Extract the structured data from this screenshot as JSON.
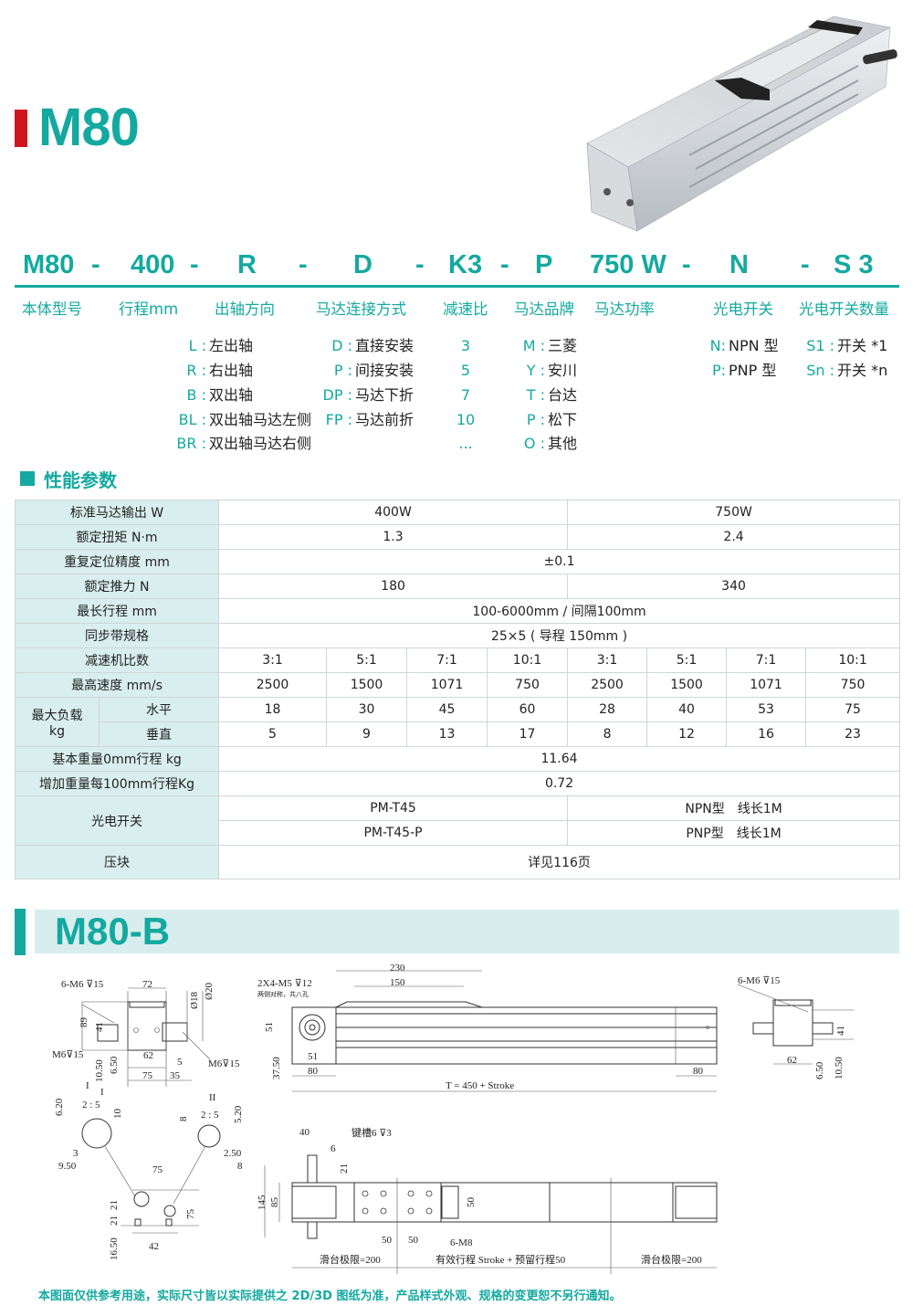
{
  "header": {
    "title": "M80",
    "accent_color": "#14a9a0",
    "title_bar_color": "#d0161d"
  },
  "product_image": {
    "icon": "linear-actuator-photo"
  },
  "model_code": {
    "parts": [
      "M80",
      "-",
      "400",
      "-",
      "R",
      "-",
      "D",
      "-",
      "K3",
      "-",
      "P",
      "750 W",
      "-",
      "N",
      "-",
      "S 3"
    ],
    "labels": [
      "本体型号",
      "行程mm",
      "出轴方向",
      "马达连接方式",
      "减速比",
      "马达品牌",
      "马达功率",
      "光电开关",
      "光电开关数量"
    ]
  },
  "options": {
    "shaft_direction": [
      {
        "code": "L :",
        "text": "左出轴"
      },
      {
        "code": "R :",
        "text": "右出轴"
      },
      {
        "code": "B :",
        "text": "双出轴"
      },
      {
        "code": "BL :",
        "text": "双出轴马达左侧"
      },
      {
        "code": "BR :",
        "text": "双出轴马达右侧"
      }
    ],
    "motor_connection": [
      {
        "code": "D :",
        "text": "直接安装"
      },
      {
        "code": "P :",
        "text": "间接安装"
      },
      {
        "code": "DP :",
        "text": "马达下折"
      },
      {
        "code": "FP :",
        "text": "马达前折"
      }
    ],
    "reduction_ratio": [
      "3",
      "5",
      "7",
      "10",
      "..."
    ],
    "motor_brand": [
      {
        "code": "M :",
        "text": "三菱"
      },
      {
        "code": "Y :",
        "text": "安川"
      },
      {
        "code": "T :",
        "text": "台达"
      },
      {
        "code": "P :",
        "text": "松下"
      },
      {
        "code": "O :",
        "text": "其他"
      }
    ],
    "sensor": [
      {
        "code": "N:",
        "text": "NPN 型"
      },
      {
        "code": "P:",
        "text": "PNP 型"
      }
    ],
    "sensor_qty": [
      {
        "code": "S1 :",
        "text": "开关 *1"
      },
      {
        "code": "Sn :",
        "text": "开关 *n"
      }
    ]
  },
  "performance": {
    "section_title": "性能参数",
    "rows": [
      {
        "label": "标准马达输出 W",
        "values": [
          "400W",
          "750W"
        ]
      },
      {
        "label": "额定扭矩 N·m",
        "values": [
          "1.3",
          "2.4"
        ]
      },
      {
        "label": "重复定位精度 mm",
        "values": [
          "±0.1"
        ]
      },
      {
        "label": "额定推力 N",
        "values": [
          "180",
          "340"
        ]
      },
      {
        "label": "最长行程 mm",
        "values": [
          "100-6000mm / 间隔100mm"
        ]
      },
      {
        "label": "同步带规格",
        "values": [
          "25×5 ( 导程 150mm )"
        ]
      },
      {
        "label": "减速机比数",
        "values": [
          "3:1",
          "5:1",
          "7:1",
          "10:1",
          "3:1",
          "5:1",
          "7:1",
          "10:1"
        ]
      },
      {
        "label": "最高速度 mm/s",
        "values": [
          "2500",
          "1500",
          "1071",
          "750",
          "2500",
          "1500",
          "1071",
          "750"
        ]
      },
      {
        "label": "最大负载\nkg",
        "sub": [
          {
            "label": "水平",
            "values": [
              "18",
              "30",
              "45",
              "60",
              "28",
              "40",
              "53",
              "75"
            ]
          },
          {
            "label": "垂直",
            "values": [
              "5",
              "9",
              "13",
              "17",
              "8",
              "12",
              "16",
              "23"
            ]
          }
        ]
      },
      {
        "label": "基本重量0mm行程 kg",
        "values": [
          "11.64"
        ]
      },
      {
        "label": "增加重量每100mm行程Kg",
        "values": [
          "0.72"
        ]
      },
      {
        "label": "光电开关",
        "sub": [
          {
            "values": [
              "PM-T45",
              "NPN型　线长1M"
            ]
          },
          {
            "values": [
              "PM-T45-P",
              "PNP型　线长1M"
            ]
          }
        ]
      },
      {
        "label": "压块",
        "values": [
          "详见116页"
        ]
      }
    ]
  },
  "variant": {
    "title": "M80-B"
  },
  "drawings": {
    "end_left": {
      "tap_top": "6-M6 ⊽15",
      "w72": "72",
      "h89": "89",
      "h41": "41",
      "d18": "Ø18",
      "d20": "Ø20",
      "tap_left": "M6⊽15",
      "w62": "62",
      "w5": "5",
      "tap_right": "M6⊽15",
      "h10_50": "10.50",
      "h6_50": "6.50",
      "w75": "75",
      "w35": "35",
      "detail_mark": "I"
    },
    "side": {
      "tap": "2X4-M5  ⊽12",
      "tap_note": "两侧对称，共八孔",
      "w230": "230",
      "w150": "150",
      "h51": "51",
      "h37_50": "37.50",
      "w51": "51",
      "w80": "80",
      "total": "T = 450 + Stroke",
      "w80_right": "80"
    },
    "end_right": {
      "tap": "6-M6  ⊽15",
      "w62": "62",
      "h41": "41",
      "h6_50": "6.50",
      "h10_50": "10.50"
    },
    "detail": {
      "i_mark": "I",
      "i_scale": "2 : 5",
      "i_6_20": "6.20",
      "i_10": "10",
      "i_3": "3",
      "i_9_50": "9.50",
      "ii_mark": "II",
      "ii_scale": "2 : 5",
      "ii_8": "8",
      "ii_5_20": "5.20",
      "ii_2_50": "2.50",
      "ii_8b": "8",
      "p75": "75",
      "p21a": "21",
      "p21b": "21",
      "p75v": "75",
      "p16_50": "16.50",
      "p42": "42"
    },
    "top": {
      "w40": "40",
      "keyway": "键槽6  ⊽3",
      "w6": "6",
      "h21": "21",
      "h145": "145",
      "h85": "85",
      "h50": "50",
      "w50a": "50",
      "w50b": "50",
      "tap": "6-M8",
      "limit_left": "滑台极限=200",
      "stroke": "有效行程 Stroke + 预留行程50",
      "limit_right": "滑台极限=200"
    }
  },
  "footer": {
    "note": "本图面仅供参考用途，实际尺寸皆以实际提供之 2D/3D 图纸为准，产品样式外观、规格的变更恕不另行通知。"
  }
}
